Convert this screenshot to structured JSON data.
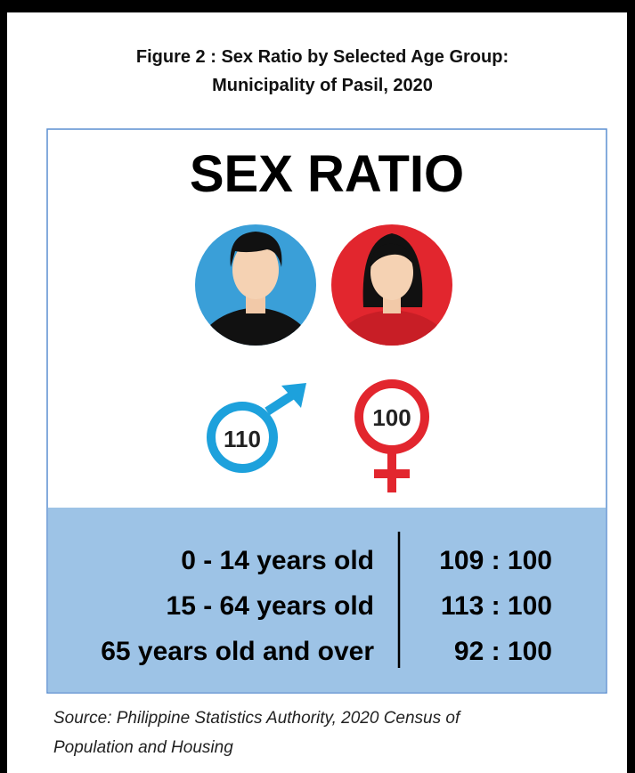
{
  "figure": {
    "title": [
      "Figure 2 : Sex Ratio by Selected Age Group:",
      "Municipality of Pasil, 2020"
    ],
    "headline": "SEX RATIO",
    "male": "110",
    "female": "100",
    "rows": [
      {
        "label": "0 - 14 years old",
        "ratio": "109 : 100"
      },
      {
        "label": "15 - 64 years old",
        "ratio": "113 : 100"
      },
      {
        "label": "65 years old and over",
        "ratio": "92 : 100"
      }
    ],
    "source": [
      "Source: Philippine Statistics Authority, 2020 Census of",
      "Population and Housing"
    ]
  }
}
